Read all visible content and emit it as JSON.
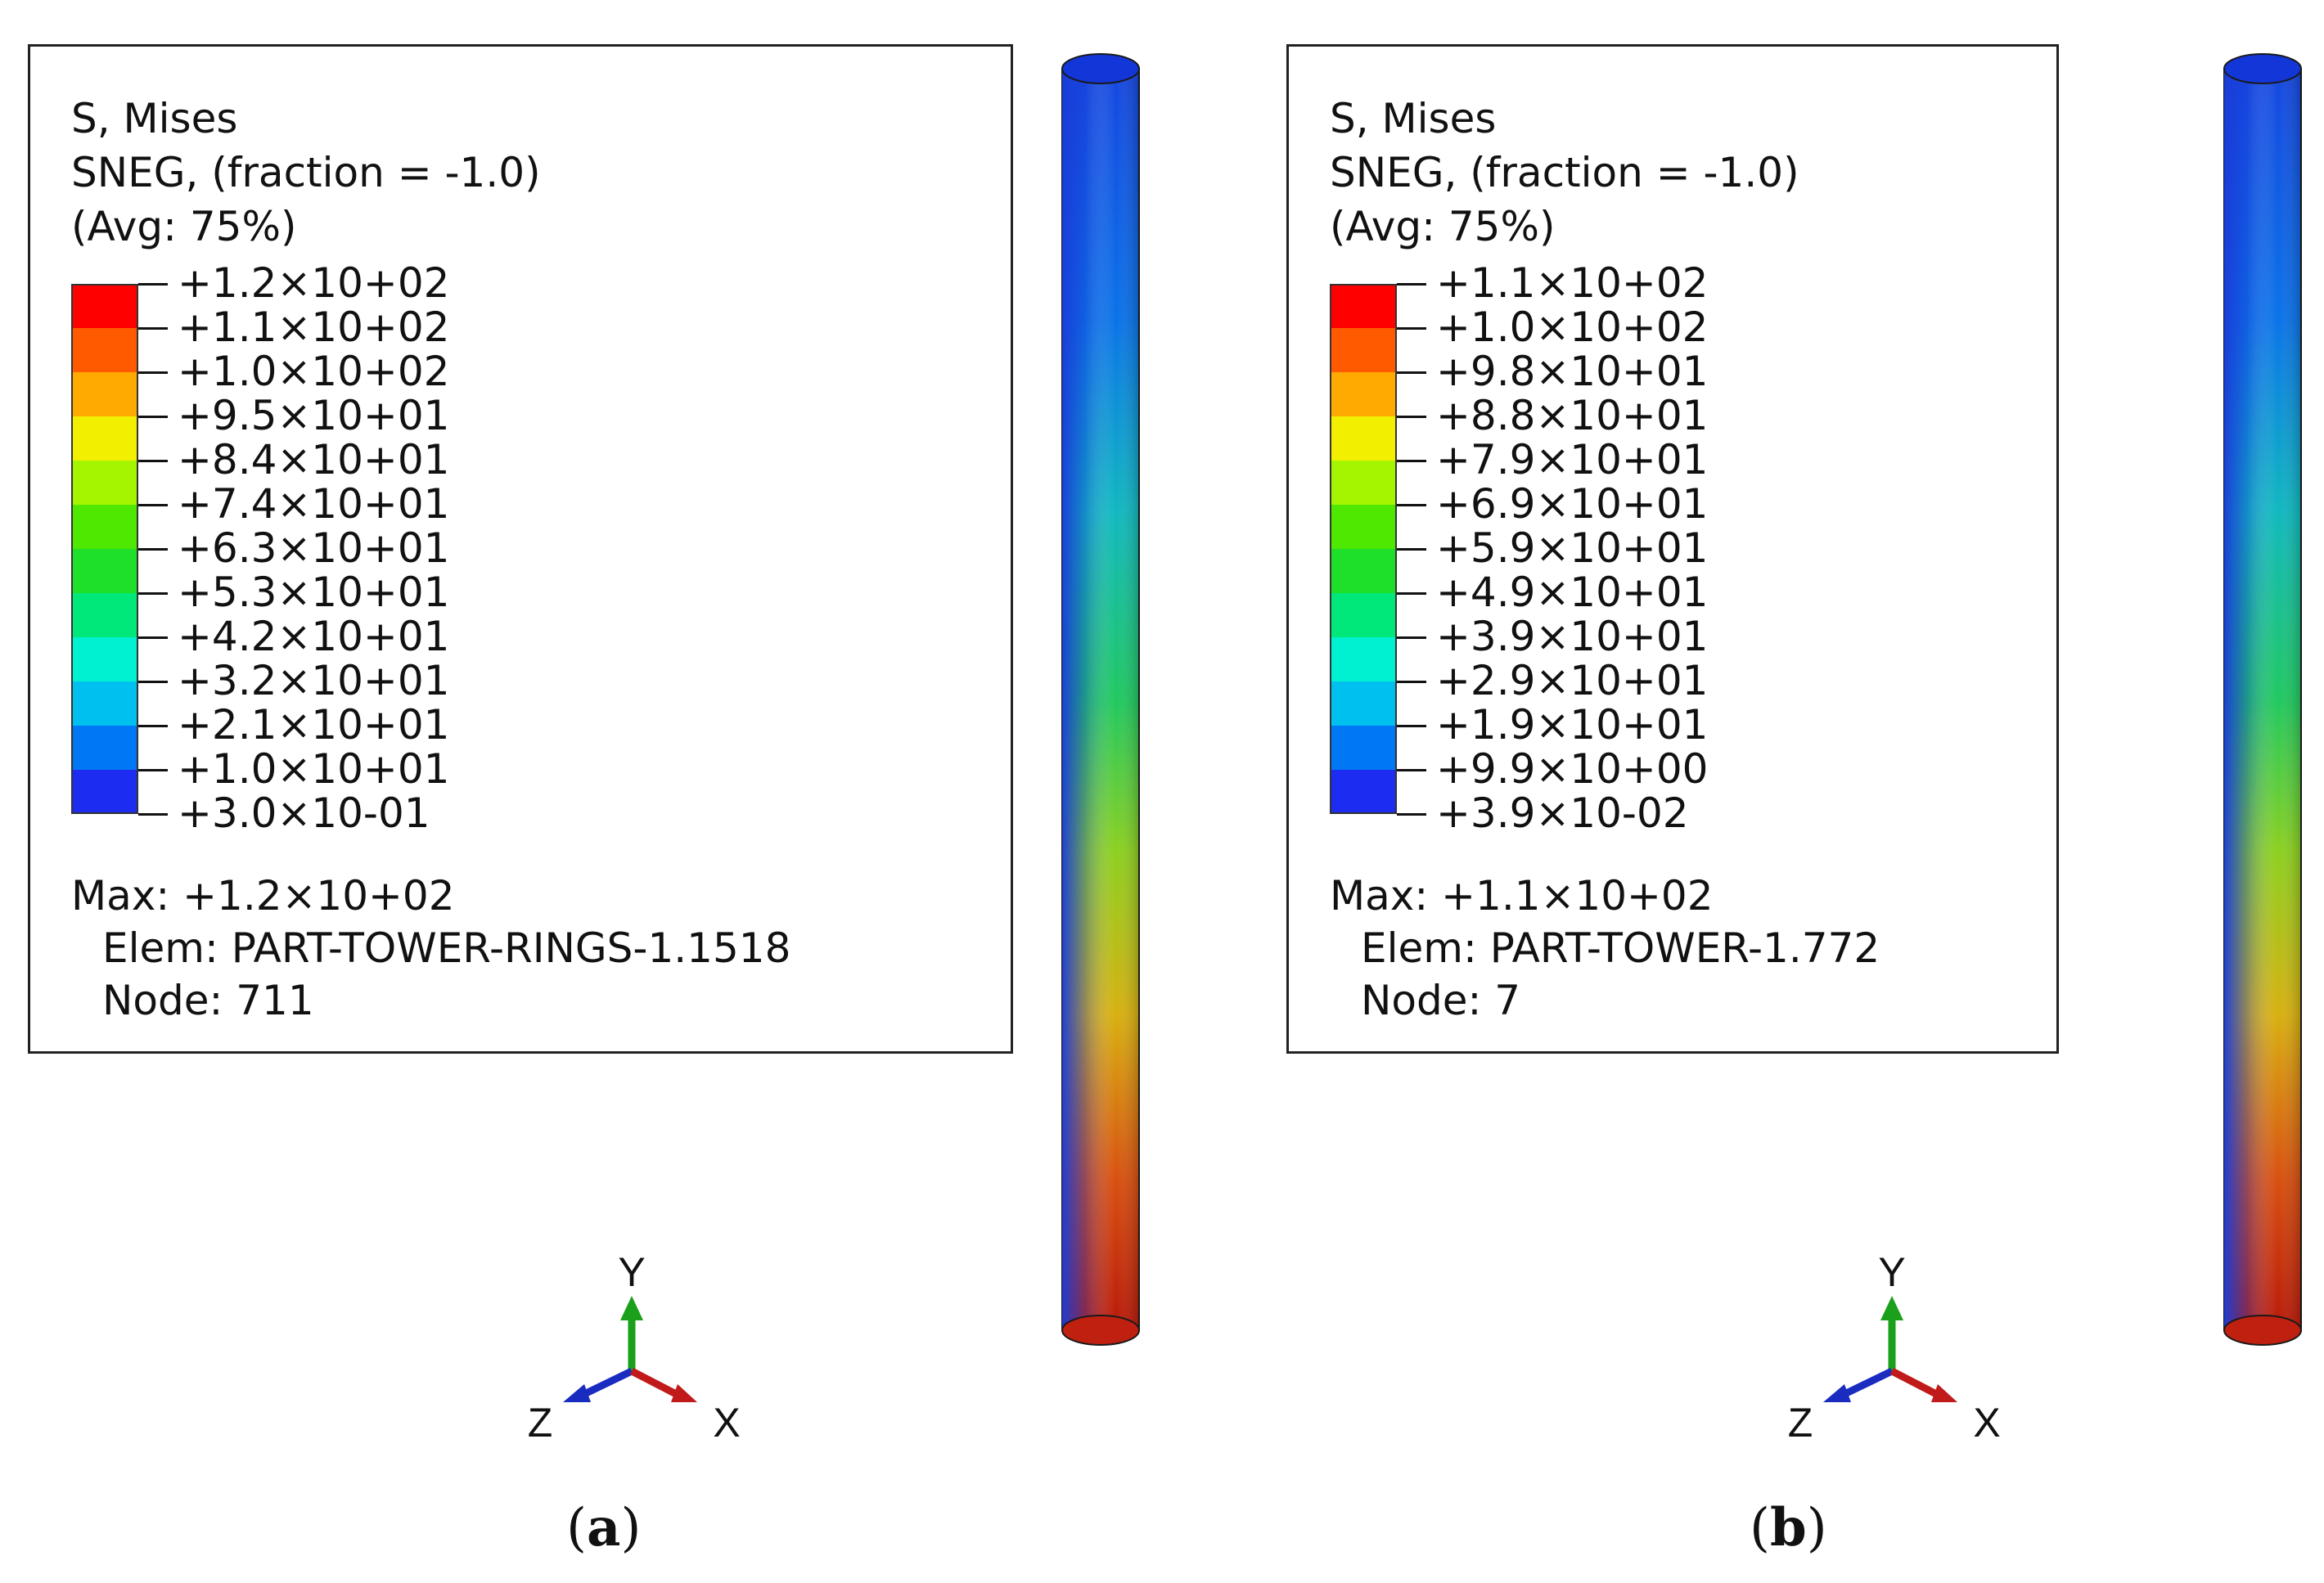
{
  "panels": [
    {
      "id": "a",
      "legend": {
        "header_line1": "S, Mises",
        "header_line2": "SNEG, (fraction = -1.0)",
        "header_line3": "(Avg: 75%)",
        "levels": [
          {
            "label": "+1.2×10+02",
            "color": "#ff0000"
          },
          {
            "label": "+1.1×10+02",
            "color": "#ff5a00"
          },
          {
            "label": "+1.0×10+02",
            "color": "#ffaa00"
          },
          {
            "label": "+9.5×10+01",
            "color": "#f2f000"
          },
          {
            "label": "+8.4×10+01",
            "color": "#a6f500"
          },
          {
            "label": "+7.4×10+01",
            "color": "#4fe800"
          },
          {
            "label": "+6.3×10+01",
            "color": "#1ee02a"
          },
          {
            "label": "+5.3×10+01",
            "color": "#00e87a"
          },
          {
            "label": "+4.2×10+01",
            "color": "#00f0d2"
          },
          {
            "label": "+3.2×10+01",
            "color": "#00c0f0"
          },
          {
            "label": "+2.1×10+01",
            "color": "#0078f5"
          },
          {
            "label": "+1.0×10+01",
            "color": "#1c2cf0"
          },
          {
            "label": "+3.0×10-01",
            "color": null
          }
        ],
        "max_text": "Max: +1.2×10+02",
        "elem_text": "Elem: PART-TOWER-RINGS-1.1518",
        "node_text": "Node: 711"
      },
      "axes": {
        "y": "Y",
        "z": "Z",
        "x": "X"
      },
      "caption_letter": "a"
    },
    {
      "id": "b",
      "legend": {
        "header_line1": "S, Mises",
        "header_line2": "SNEG, (fraction = -1.0)",
        "header_line3": "(Avg: 75%)",
        "levels": [
          {
            "label": "+1.1×10+02",
            "color": "#ff0000"
          },
          {
            "label": "+1.0×10+02",
            "color": "#ff5a00"
          },
          {
            "label": "+9.8×10+01",
            "color": "#ffaa00"
          },
          {
            "label": "+8.8×10+01",
            "color": "#f2f000"
          },
          {
            "label": "+7.9×10+01",
            "color": "#a6f500"
          },
          {
            "label": "+6.9×10+01",
            "color": "#4fe800"
          },
          {
            "label": "+5.9×10+01",
            "color": "#1ee02a"
          },
          {
            "label": "+4.9×10+01",
            "color": "#00e87a"
          },
          {
            "label": "+3.9×10+01",
            "color": "#00f0d2"
          },
          {
            "label": "+2.9×10+01",
            "color": "#00c0f0"
          },
          {
            "label": "+1.9×10+01",
            "color": "#0078f5"
          },
          {
            "label": "+9.9×10+00",
            "color": "#1c2cf0"
          },
          {
            "label": "+3.9×10-02",
            "color": null
          }
        ],
        "max_text": "Max: +1.1×10+02",
        "elem_text": "Elem: PART-TOWER-1.772",
        "node_text": "Node: 7"
      },
      "axes": {
        "y": "Y",
        "z": "Z",
        "x": "X"
      },
      "caption_letter": "b"
    }
  ]
}
